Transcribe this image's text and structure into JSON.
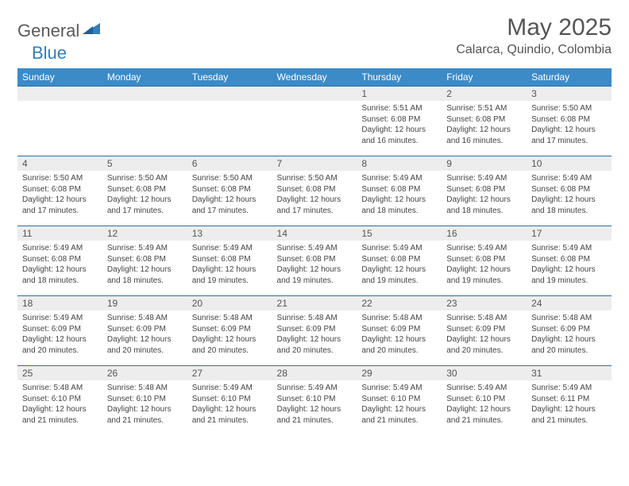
{
  "logo": {
    "general": "General",
    "blue": "Blue",
    "shape_color": "#2f7fbf"
  },
  "title": "May 2025",
  "location": "Calarca, Quindio, Colombia",
  "colors": {
    "header_bg": "#3b8bc8",
    "header_text": "#ffffff",
    "row_border": "#2f6fa0",
    "daynum_bg": "#ededed",
    "text": "#444444"
  },
  "weekdays": [
    "Sunday",
    "Monday",
    "Tuesday",
    "Wednesday",
    "Thursday",
    "Friday",
    "Saturday"
  ],
  "first_weekday_index": 4,
  "days": [
    {
      "n": 1,
      "sunrise": "5:51 AM",
      "sunset": "6:08 PM",
      "daylight": "12 hours and 16 minutes."
    },
    {
      "n": 2,
      "sunrise": "5:51 AM",
      "sunset": "6:08 PM",
      "daylight": "12 hours and 16 minutes."
    },
    {
      "n": 3,
      "sunrise": "5:50 AM",
      "sunset": "6:08 PM",
      "daylight": "12 hours and 17 minutes."
    },
    {
      "n": 4,
      "sunrise": "5:50 AM",
      "sunset": "6:08 PM",
      "daylight": "12 hours and 17 minutes."
    },
    {
      "n": 5,
      "sunrise": "5:50 AM",
      "sunset": "6:08 PM",
      "daylight": "12 hours and 17 minutes."
    },
    {
      "n": 6,
      "sunrise": "5:50 AM",
      "sunset": "6:08 PM",
      "daylight": "12 hours and 17 minutes."
    },
    {
      "n": 7,
      "sunrise": "5:50 AM",
      "sunset": "6:08 PM",
      "daylight": "12 hours and 17 minutes."
    },
    {
      "n": 8,
      "sunrise": "5:49 AM",
      "sunset": "6:08 PM",
      "daylight": "12 hours and 18 minutes."
    },
    {
      "n": 9,
      "sunrise": "5:49 AM",
      "sunset": "6:08 PM",
      "daylight": "12 hours and 18 minutes."
    },
    {
      "n": 10,
      "sunrise": "5:49 AM",
      "sunset": "6:08 PM",
      "daylight": "12 hours and 18 minutes."
    },
    {
      "n": 11,
      "sunrise": "5:49 AM",
      "sunset": "6:08 PM",
      "daylight": "12 hours and 18 minutes."
    },
    {
      "n": 12,
      "sunrise": "5:49 AM",
      "sunset": "6:08 PM",
      "daylight": "12 hours and 18 minutes."
    },
    {
      "n": 13,
      "sunrise": "5:49 AM",
      "sunset": "6:08 PM",
      "daylight": "12 hours and 19 minutes."
    },
    {
      "n": 14,
      "sunrise": "5:49 AM",
      "sunset": "6:08 PM",
      "daylight": "12 hours and 19 minutes."
    },
    {
      "n": 15,
      "sunrise": "5:49 AM",
      "sunset": "6:08 PM",
      "daylight": "12 hours and 19 minutes."
    },
    {
      "n": 16,
      "sunrise": "5:49 AM",
      "sunset": "6:08 PM",
      "daylight": "12 hours and 19 minutes."
    },
    {
      "n": 17,
      "sunrise": "5:49 AM",
      "sunset": "6:08 PM",
      "daylight": "12 hours and 19 minutes."
    },
    {
      "n": 18,
      "sunrise": "5:49 AM",
      "sunset": "6:09 PM",
      "daylight": "12 hours and 20 minutes."
    },
    {
      "n": 19,
      "sunrise": "5:48 AM",
      "sunset": "6:09 PM",
      "daylight": "12 hours and 20 minutes."
    },
    {
      "n": 20,
      "sunrise": "5:48 AM",
      "sunset": "6:09 PM",
      "daylight": "12 hours and 20 minutes."
    },
    {
      "n": 21,
      "sunrise": "5:48 AM",
      "sunset": "6:09 PM",
      "daylight": "12 hours and 20 minutes."
    },
    {
      "n": 22,
      "sunrise": "5:48 AM",
      "sunset": "6:09 PM",
      "daylight": "12 hours and 20 minutes."
    },
    {
      "n": 23,
      "sunrise": "5:48 AM",
      "sunset": "6:09 PM",
      "daylight": "12 hours and 20 minutes."
    },
    {
      "n": 24,
      "sunrise": "5:48 AM",
      "sunset": "6:09 PM",
      "daylight": "12 hours and 20 minutes."
    },
    {
      "n": 25,
      "sunrise": "5:48 AM",
      "sunset": "6:10 PM",
      "daylight": "12 hours and 21 minutes."
    },
    {
      "n": 26,
      "sunrise": "5:48 AM",
      "sunset": "6:10 PM",
      "daylight": "12 hours and 21 minutes."
    },
    {
      "n": 27,
      "sunrise": "5:49 AM",
      "sunset": "6:10 PM",
      "daylight": "12 hours and 21 minutes."
    },
    {
      "n": 28,
      "sunrise": "5:49 AM",
      "sunset": "6:10 PM",
      "daylight": "12 hours and 21 minutes."
    },
    {
      "n": 29,
      "sunrise": "5:49 AM",
      "sunset": "6:10 PM",
      "daylight": "12 hours and 21 minutes."
    },
    {
      "n": 30,
      "sunrise": "5:49 AM",
      "sunset": "6:10 PM",
      "daylight": "12 hours and 21 minutes."
    },
    {
      "n": 31,
      "sunrise": "5:49 AM",
      "sunset": "6:11 PM",
      "daylight": "12 hours and 21 minutes."
    }
  ],
  "labels": {
    "sunrise": "Sunrise:",
    "sunset": "Sunset:",
    "daylight": "Daylight:"
  }
}
